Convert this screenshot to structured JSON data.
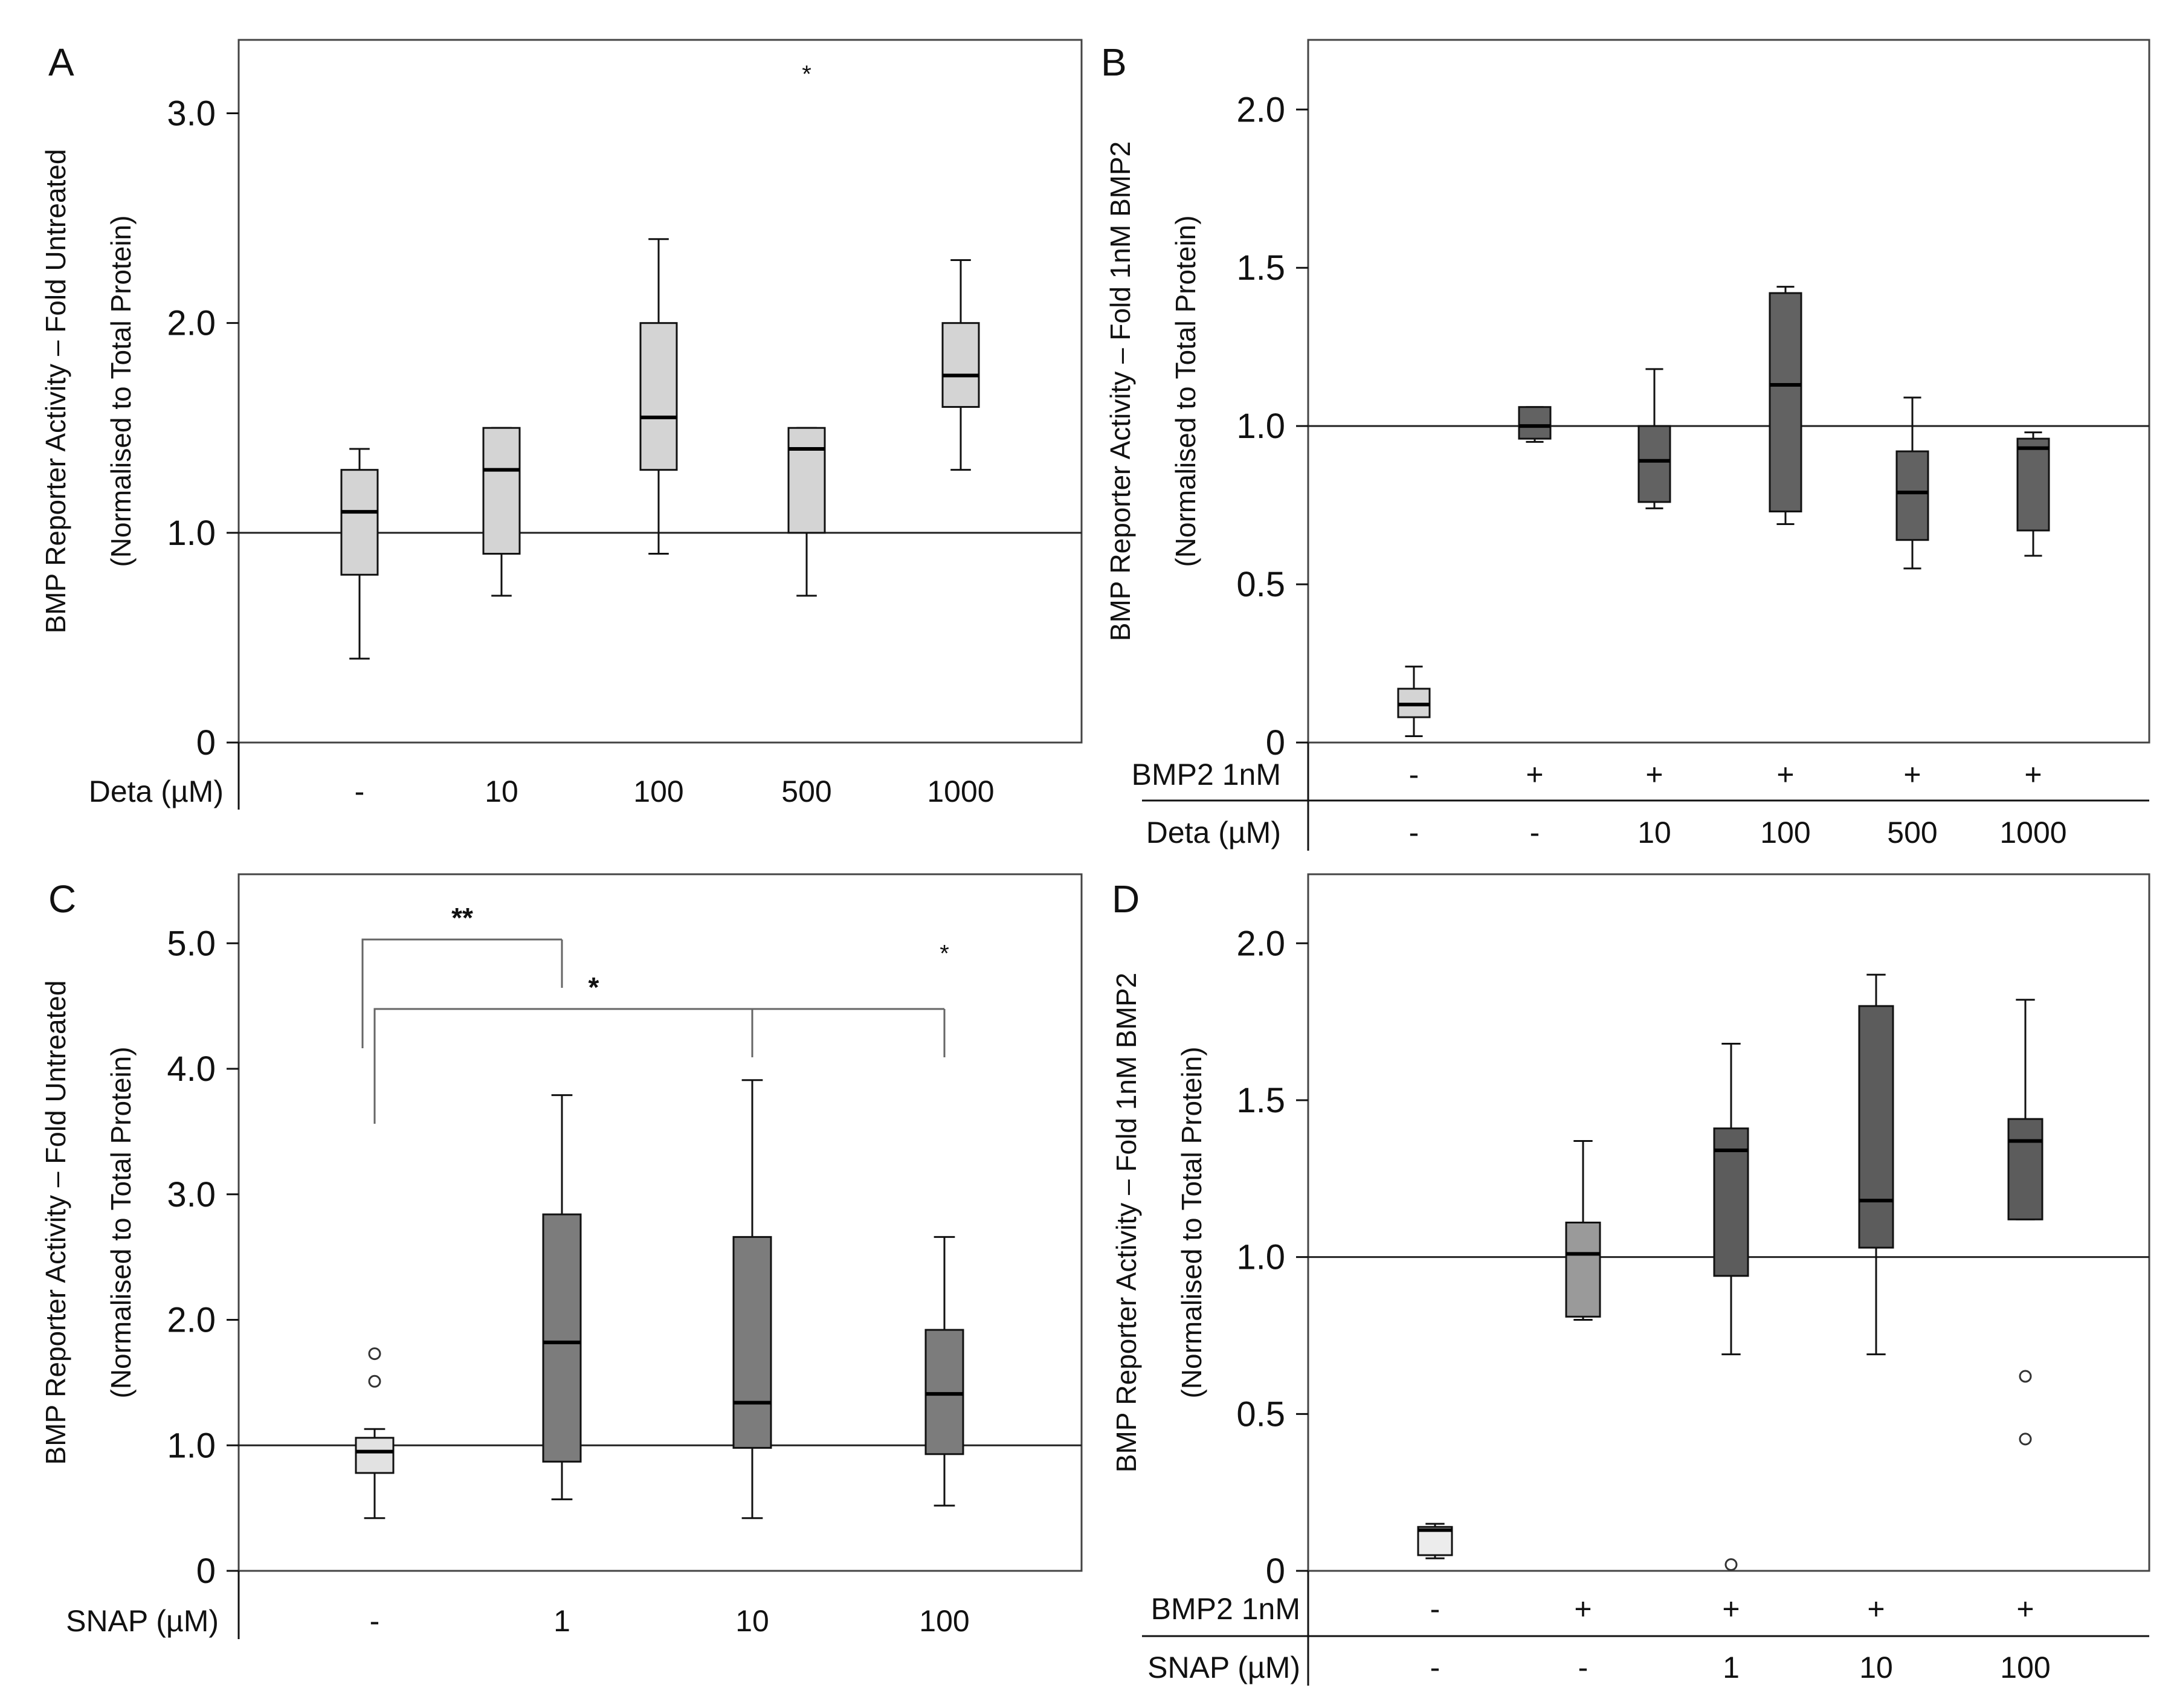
{
  "chart_data": [
    {
      "panel": "A",
      "type": "box",
      "ylabel": [
        "BMP Reporter Activity – Fold Untreated",
        "(Normalised to Total Protein)"
      ],
      "yticks": [
        {
          "value": 0,
          "label": "0"
        },
        {
          "value": 1,
          "label": "1.0"
        },
        {
          "value": 2,
          "label": "2.0"
        },
        {
          "value": 3,
          "label": "3.0"
        }
      ],
      "ylim": [
        0,
        3.35
      ],
      "reference_line": 1.0,
      "rows": [
        {
          "label": "Deta (µM)",
          "values": [
            "-",
            "10",
            "100",
            "500",
            "1000"
          ]
        }
      ],
      "boxes": [
        {
          "category": "-",
          "min": 0.4,
          "q1": 0.8,
          "median": 1.1,
          "q3": 1.3,
          "max": 1.4,
          "fill": "#d4d4d4"
        },
        {
          "category": "10",
          "min": 0.7,
          "q1": 0.9,
          "median": 1.3,
          "q3": 1.5,
          "max": 1.5,
          "fill": "#d4d4d4"
        },
        {
          "category": "100",
          "min": 0.9,
          "q1": 1.3,
          "median": 1.55,
          "q3": 2.0,
          "max": 2.4,
          "fill": "#d4d4d4"
        },
        {
          "category": "500",
          "min": 0.7,
          "q1": 1.0,
          "median": 1.4,
          "q3": 1.5,
          "max": 1.5,
          "fill": "#d4d4d4"
        },
        {
          "category": "1000",
          "min": 1.3,
          "q1": 1.6,
          "median": 1.75,
          "q3": 2.0,
          "max": 2.3,
          "fill": "#d4d4d4"
        }
      ],
      "extreme_markers": [
        {
          "category": "500",
          "value": 3.2,
          "symbol": "*"
        }
      ]
    },
    {
      "panel": "B",
      "type": "box",
      "ylabel": [
        "BMP Reporter Activity – Fold 1nM BMP2",
        "(Normalised to Total Protein)"
      ],
      "yticks": [
        {
          "value": 0,
          "label": "0"
        },
        {
          "value": 0.5,
          "label": "0.5"
        },
        {
          "value": 1,
          "label": "1.0"
        },
        {
          "value": 1.5,
          "label": "1.5"
        },
        {
          "value": 2,
          "label": "2.0"
        }
      ],
      "ylim": [
        0,
        2.22
      ],
      "reference_line": 1.0,
      "rows": [
        {
          "label": "BMP2 1nM",
          "values": [
            "-",
            "+",
            "+",
            "+",
            "+",
            "+"
          ]
        },
        {
          "label": "Deta (µM)",
          "values": [
            "-",
            "-",
            "10",
            "100",
            "500",
            "1000"
          ]
        }
      ],
      "boxes": [
        {
          "category": "1",
          "min": 0.02,
          "q1": 0.08,
          "median": 0.12,
          "q3": 0.17,
          "max": 0.24,
          "fill": "#d4d4d4"
        },
        {
          "category": "2",
          "min": 0.95,
          "q1": 0.96,
          "median": 1.0,
          "q3": 1.06,
          "max": 1.06,
          "fill": "#626262"
        },
        {
          "category": "3",
          "min": 0.74,
          "q1": 0.76,
          "median": 0.89,
          "q3": 1.0,
          "max": 1.18,
          "fill": "#626262"
        },
        {
          "category": "4",
          "min": 0.69,
          "q1": 0.73,
          "median": 1.13,
          "q3": 1.42,
          "max": 1.44,
          "fill": "#626262"
        },
        {
          "category": "5",
          "min": 0.55,
          "q1": 0.64,
          "median": 0.79,
          "q3": 0.92,
          "max": 1.09,
          "fill": "#626262"
        },
        {
          "category": "6",
          "min": 0.59,
          "q1": 0.67,
          "median": 0.93,
          "q3": 0.96,
          "max": 0.98,
          "fill": "#626262"
        }
      ]
    },
    {
      "panel": "C",
      "type": "box",
      "ylabel": [
        "BMP Reporter Activity – Fold Untreated",
        "(Normalised to Total Protein)"
      ],
      "yticks": [
        {
          "value": 0,
          "label": "0"
        },
        {
          "value": 1,
          "label": "1.0"
        },
        {
          "value": 2,
          "label": "2.0"
        },
        {
          "value": 3,
          "label": "3.0"
        },
        {
          "value": 4,
          "label": "4.0"
        },
        {
          "value": 5,
          "label": "5.0"
        }
      ],
      "ylim": [
        0,
        5.55
      ],
      "reference_line": 1.0,
      "rows": [
        {
          "label": "SNAP (µM)",
          "values": [
            "-",
            "1",
            "10",
            "100"
          ]
        }
      ],
      "boxes": [
        {
          "category": "-",
          "min": 0.42,
          "q1": 0.78,
          "median": 0.95,
          "q3": 1.06,
          "max": 1.13,
          "fill": "#e2e2e2"
        },
        {
          "category": "1",
          "min": 0.57,
          "q1": 0.87,
          "median": 1.82,
          "q3": 2.84,
          "max": 3.79,
          "fill": "#7c7c7c"
        },
        {
          "category": "10",
          "min": 0.42,
          "q1": 0.98,
          "median": 1.34,
          "q3": 2.66,
          "max": 3.91,
          "fill": "#7c7c7c"
        },
        {
          "category": "100",
          "min": 0.52,
          "q1": 0.93,
          "median": 1.41,
          "q3": 1.92,
          "max": 2.66,
          "fill": "#7c7c7c"
        }
      ],
      "outliers": [
        {
          "category": "-",
          "value": 1.73
        },
        {
          "category": "-",
          "value": 1.51
        }
      ],
      "extreme_markers": [
        {
          "category": "100",
          "value": 4.94,
          "symbol": "*"
        }
      ],
      "significance": [
        {
          "label": "**",
          "from": "-",
          "to": [
            "1"
          ]
        },
        {
          "label": "*",
          "from": "-",
          "to": [
            "10",
            "100"
          ]
        }
      ]
    },
    {
      "panel": "D",
      "type": "box",
      "ylabel": [
        "BMP Reporter Activity – Fold 1nM BMP2",
        "(Normalised to Total Protein)"
      ],
      "yticks": [
        {
          "value": 0,
          "label": "0"
        },
        {
          "value": 0.5,
          "label": "0.5"
        },
        {
          "value": 1,
          "label": "1.0"
        },
        {
          "value": 1.5,
          "label": "1.5"
        },
        {
          "value": 2,
          "label": "2.0"
        }
      ],
      "ylim": [
        0,
        2.22
      ],
      "reference_line": 1.0,
      "rows": [
        {
          "label": "BMP2 1nM",
          "values": [
            "-",
            "+",
            "+",
            "+",
            "+"
          ]
        },
        {
          "label": "SNAP (µM)",
          "values": [
            "-",
            "-",
            "1",
            "10",
            "100"
          ]
        }
      ],
      "boxes": [
        {
          "category": "1",
          "min": 0.04,
          "q1": 0.05,
          "median": 0.13,
          "q3": 0.14,
          "max": 0.15,
          "fill": "#ececec"
        },
        {
          "category": "2",
          "min": 0.8,
          "q1": 0.81,
          "median": 1.01,
          "q3": 1.11,
          "max": 1.37,
          "fill": "#9a9a9a"
        },
        {
          "category": "3",
          "min": 0.69,
          "q1": 0.94,
          "median": 1.34,
          "q3": 1.41,
          "max": 1.68,
          "fill": "#5c5c5c"
        },
        {
          "category": "4",
          "min": 0.69,
          "q1": 1.03,
          "median": 1.18,
          "q3": 1.8,
          "max": 1.9,
          "fill": "#5c5c5c"
        },
        {
          "category": "5",
          "min": 1.12,
          "q1": 1.12,
          "median": 1.37,
          "q3": 1.44,
          "max": 1.82,
          "fill": "#5c5c5c"
        }
      ],
      "outliers": [
        {
          "category": "3",
          "value": 0.02
        },
        {
          "category": "5",
          "value": 0.62
        },
        {
          "category": "5",
          "value": 0.42
        }
      ]
    }
  ]
}
